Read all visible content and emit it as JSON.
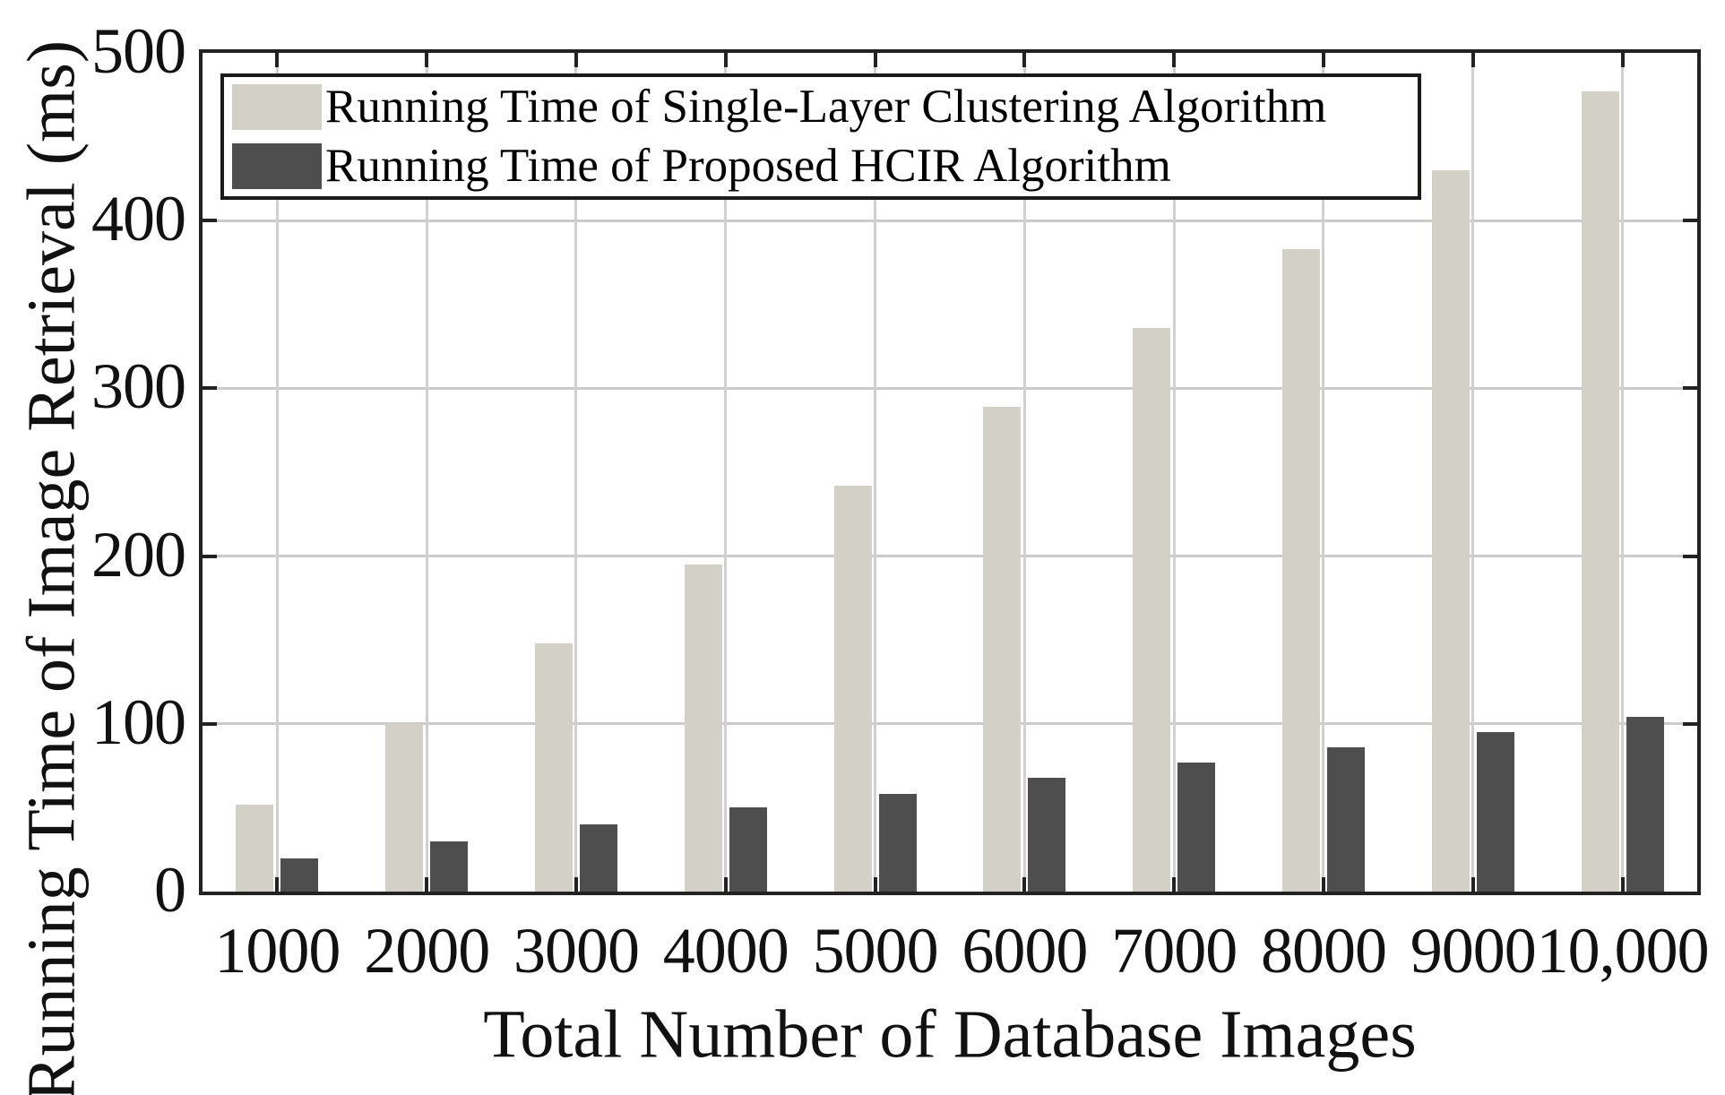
{
  "chart_data": {
    "type": "bar",
    "title": "",
    "categories": [
      "1000",
      "2000",
      "3000",
      "4000",
      "5000",
      "6000",
      "7000",
      "8000",
      "9000",
      "10,000"
    ],
    "series": [
      {
        "name": "Running Time of Single-Layer Clustering Algorithm",
        "color": "#d3d0c8",
        "values": [
          52,
          100,
          148,
          195,
          242,
          289,
          336,
          383,
          430,
          477
        ]
      },
      {
        "name": "Running Time of Proposed HCIR Algorithm",
        "color": "#4e4e4e",
        "values": [
          20,
          30,
          40,
          50,
          58,
          68,
          77,
          86,
          95,
          104
        ]
      }
    ],
    "xlabel": "Total Number of Database Images",
    "ylabel": "Running Time of Image Retrieval (ms)",
    "ylim": [
      0,
      500
    ],
    "yticks": [
      0,
      100,
      200,
      300,
      400,
      500
    ],
    "grid": true,
    "legend_position": "top-left",
    "axis_color": "#222222",
    "gridline_color": "#cbcbcb",
    "background_color": "#ffffff"
  }
}
